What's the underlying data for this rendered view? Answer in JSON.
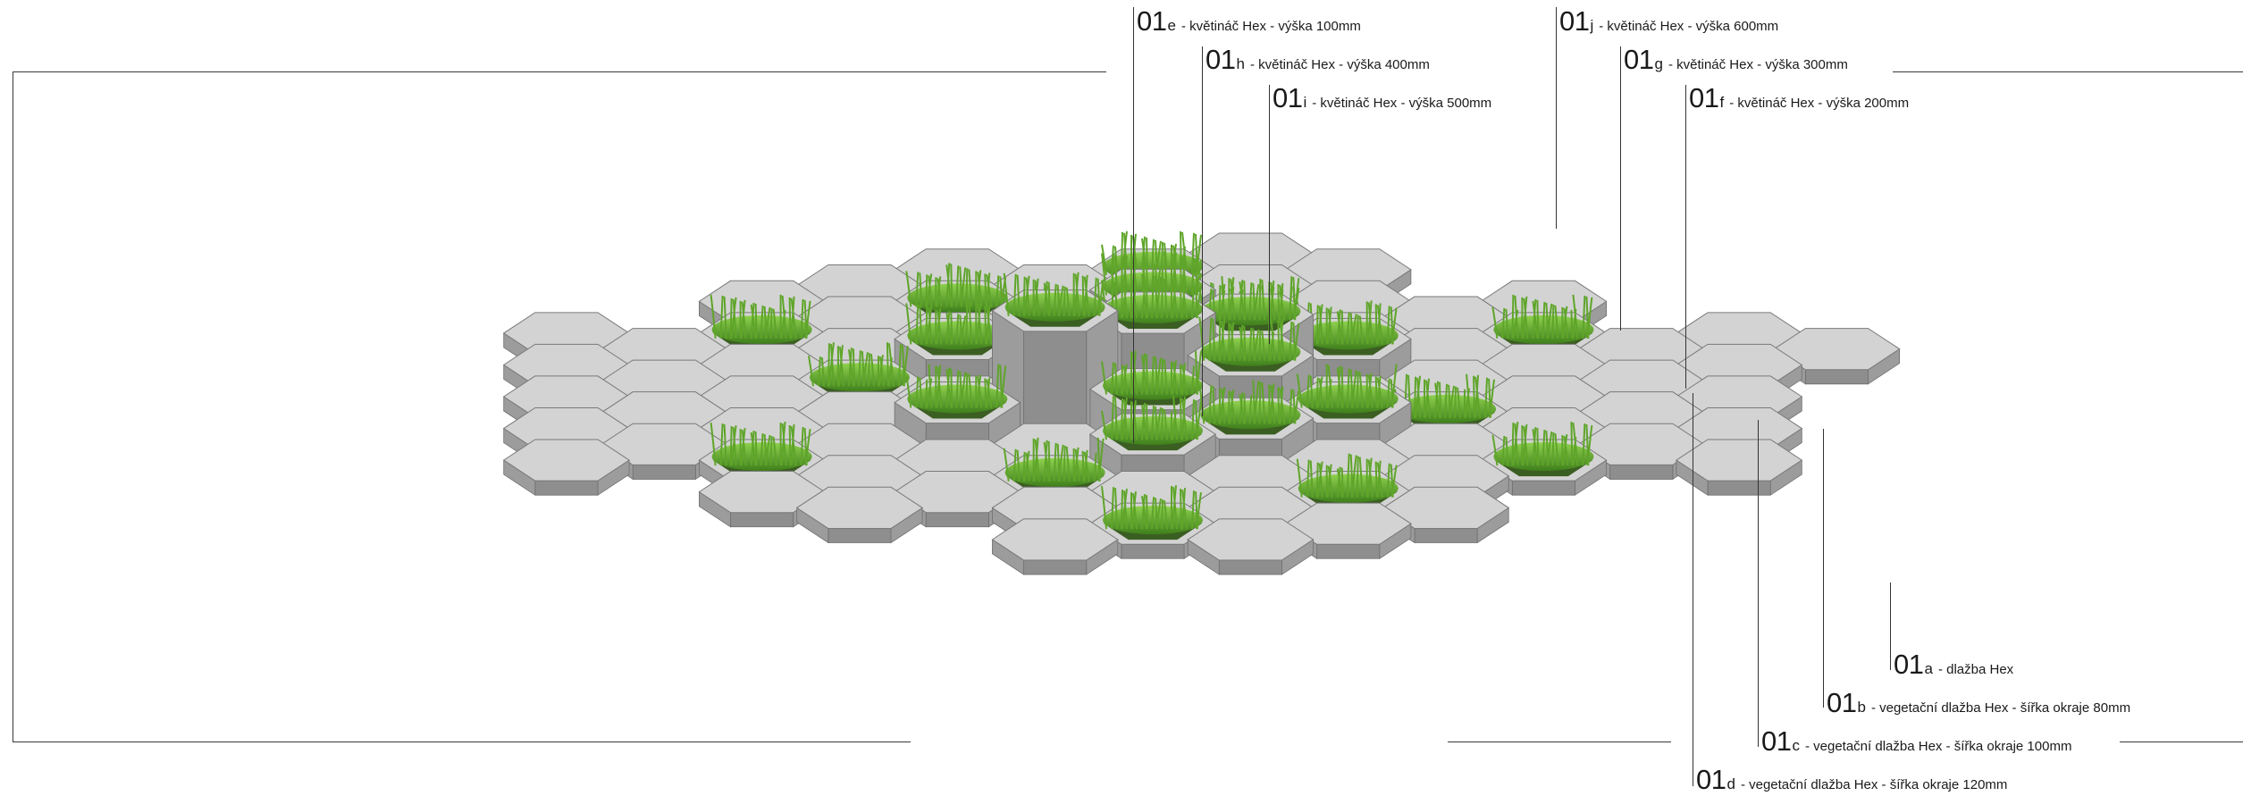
{
  "labels": {
    "e": {
      "num": "01",
      "sub": "e",
      "desc": "- květináč Hex - výška 100mm"
    },
    "h": {
      "num": "01",
      "sub": "h",
      "desc": "- květináč Hex - výška 400mm"
    },
    "i": {
      "num": "01",
      "sub": "i",
      "desc": "- květináč Hex - výška 500mm"
    },
    "j": {
      "num": "01",
      "sub": "j",
      "desc": "- květináč Hex - výška 600mm"
    },
    "g": {
      "num": "01",
      "sub": "g",
      "desc": "- květináč Hex - výška 300mm"
    },
    "f": {
      "num": "01",
      "sub": "f",
      "desc": "- květináč Hex - výška 200mm"
    },
    "a": {
      "num": "01",
      "sub": "a",
      "desc": "- dlažba Hex"
    },
    "b": {
      "num": "01",
      "sub": "b",
      "desc": "- vegetační dlažba Hex - šířka okraje 80mm"
    },
    "c": {
      "num": "01",
      "sub": "c",
      "desc": "- vegetační dlažba Hex - šířka okraje 100mm"
    },
    "d": {
      "num": "01",
      "sub": "d",
      "desc": "- vegetační dlažba Hex - šířka okraje 120mm"
    }
  },
  "colors": {
    "paver_top": "#d3d3d3",
    "paver_side": "#9c9c9c",
    "grass": "#5fa52a",
    "line": "#333333"
  }
}
